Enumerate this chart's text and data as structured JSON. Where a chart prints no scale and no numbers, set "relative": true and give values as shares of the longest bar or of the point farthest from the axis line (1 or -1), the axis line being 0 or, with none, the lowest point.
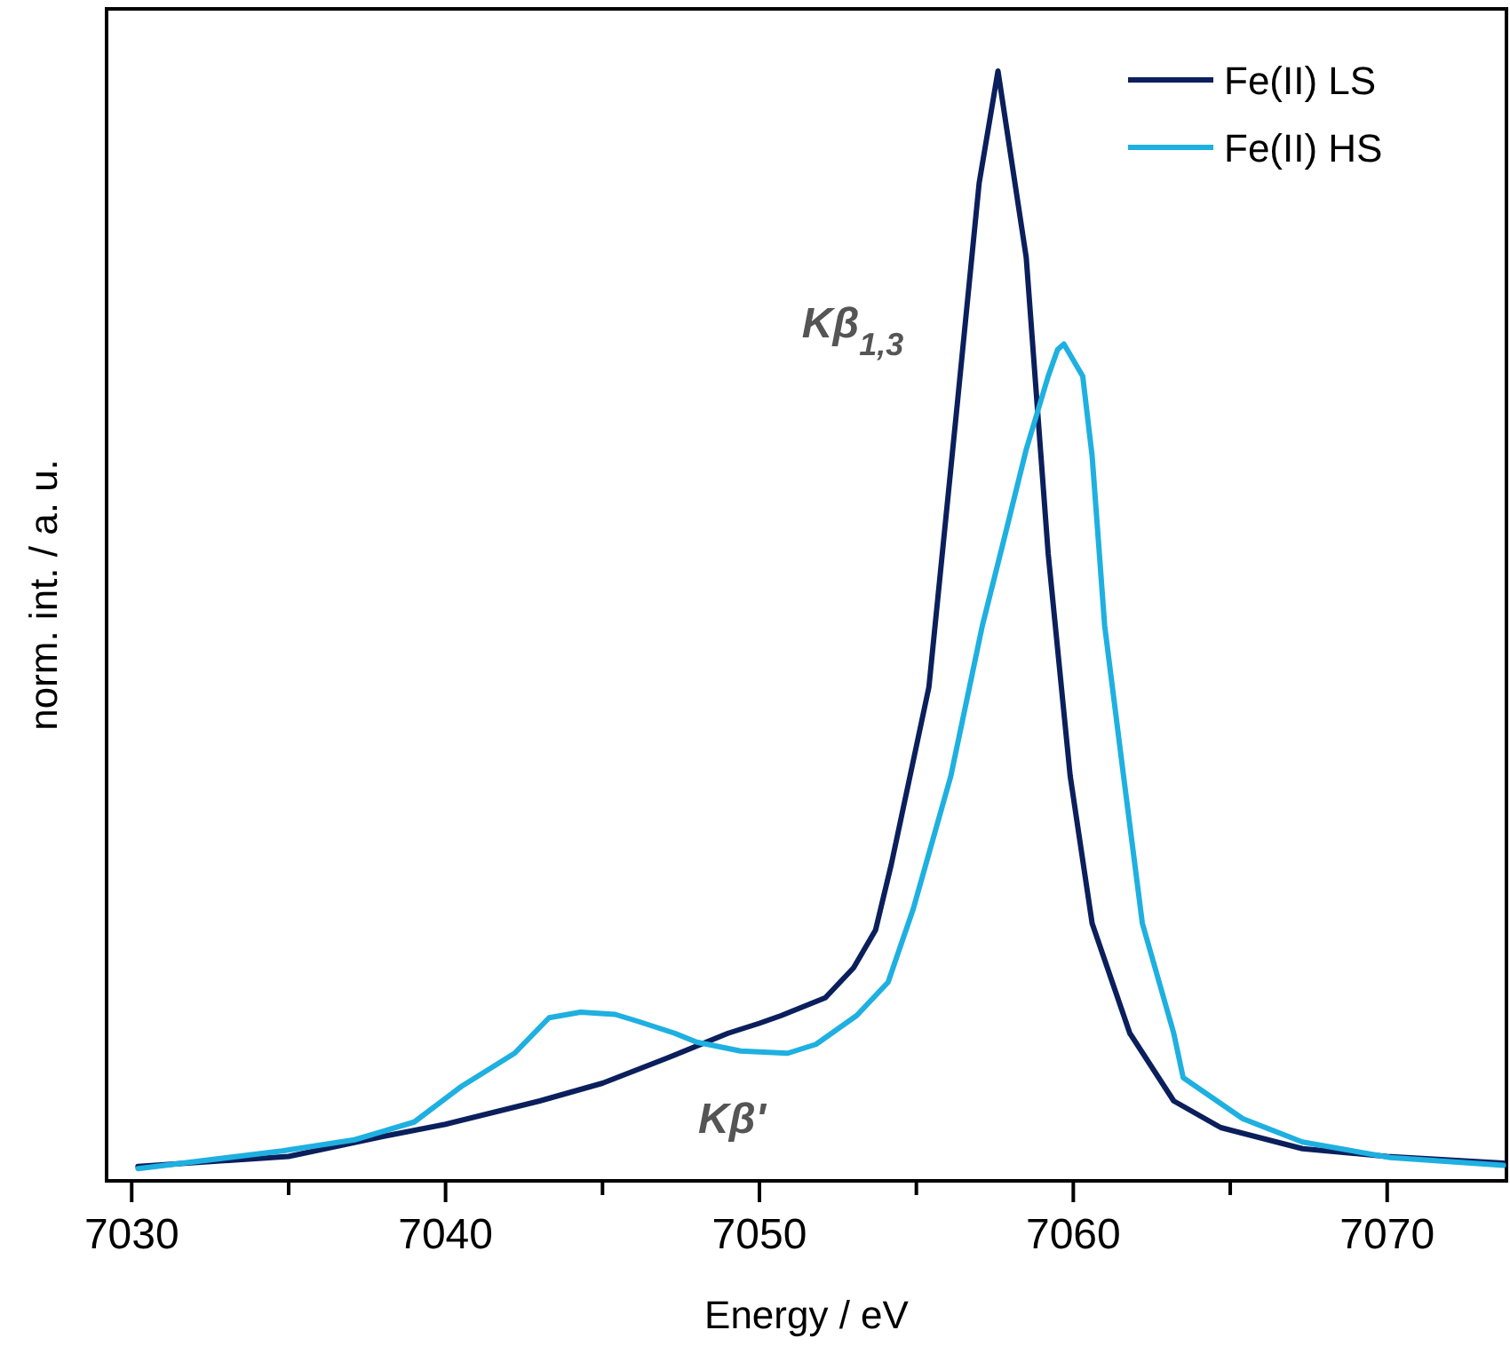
{
  "chart_data": {
    "type": "line",
    "xlabel": "Energy / eV",
    "ylabel": "norm. int. / a. u.",
    "relative": true,
    "xlim": [
      7029.2,
      7073.8
    ],
    "xticks": [
      7030,
      {
        "value": 7035,
        "label": null
      },
      7040,
      {
        "value": 7045,
        "label": null
      },
      7050,
      {
        "value": 7055,
        "label": null
      },
      7060,
      {
        "value": 7065,
        "label": null
      },
      7070
    ],
    "legend": "top right",
    "line_style": "solid",
    "marker": "none",
    "annotations": [
      "Kβ$_{1,3}$",
      "Kβ'"
    ],
    "series": [
      {
        "name": "Fe(II) LS",
        "color": "#0b1f5c",
        "x": [
          7030.2,
          7035,
          7038,
          7040,
          7043,
          7045,
          7047,
          7049,
          7050,
          7050.7,
          7052.1,
          7053,
          7053.7,
          7054.2,
          7055.4,
          7056.3,
          7057,
          7057.6,
          7058.5,
          7059.2,
          7059.9,
          7060.6,
          7061.8,
          7063.2,
          7064.7,
          7067.3,
          7070,
          7073.7
        ],
        "values": [
          0.013,
          0.022,
          0.04,
          0.051,
          0.072,
          0.088,
          0.11,
          0.133,
          0.142,
          0.149,
          0.165,
          0.192,
          0.226,
          0.285,
          0.445,
          0.699,
          0.899,
          1,
          0.832,
          0.565,
          0.365,
          0.232,
          0.133,
          0.072,
          0.048,
          0.029,
          0.022,
          0.016
        ]
      },
      {
        "name": "Fe(II) HS",
        "color": "#1eb0e0",
        "x": [
          7030.2,
          7034.8,
          7037.1,
          7039,
          7040.5,
          7042.2,
          7043.3,
          7044.3,
          7045.4,
          7046.1,
          7047.3,
          7048,
          7049.4,
          7050.9,
          7051.8,
          7053.1,
          7054.1,
          7054.9,
          7056.1,
          7057.1,
          7057.8,
          7058.5,
          7059.2,
          7059.5,
          7059.7,
          7060.3,
          7060.6,
          7061,
          7061.6,
          7062.2,
          7063.2,
          7063.5,
          7065.4,
          7067.3,
          7070.1,
          7073.7
        ],
        "values": [
          0.011,
          0.027,
          0.037,
          0.053,
          0.085,
          0.115,
          0.147,
          0.152,
          0.15,
          0.144,
          0.133,
          0.125,
          0.117,
          0.115,
          0.123,
          0.149,
          0.179,
          0.245,
          0.365,
          0.5,
          0.579,
          0.659,
          0.725,
          0.749,
          0.754,
          0.725,
          0.653,
          0.5,
          0.365,
          0.232,
          0.133,
          0.093,
          0.056,
          0.035,
          0.021,
          0.014
        ]
      }
    ]
  }
}
